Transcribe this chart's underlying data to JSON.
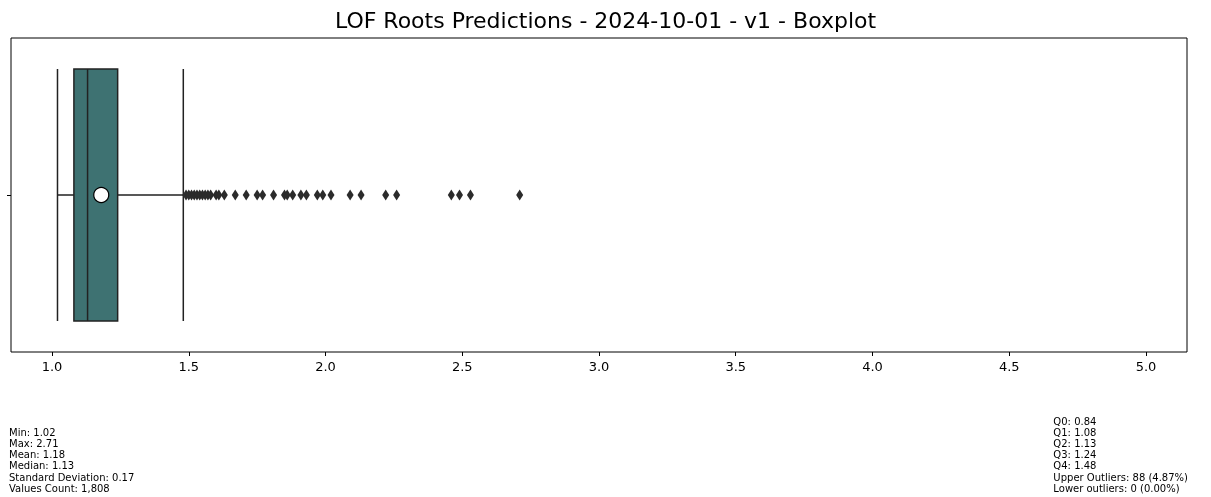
{
  "chart_data": {
    "type": "box",
    "title": "LOF Roots Predictions - 2024-10-01 - v1 - Boxplot",
    "orientation": "horizontal",
    "categories": [
      null
    ],
    "color": "#3e7272",
    "boxes": [
      {
        "low": 1.02,
        "q1": 1.08,
        "median": 1.13,
        "q3": 1.24,
        "high": 1.48,
        "mean": 1.18,
        "outliers": [
          1.49,
          1.5,
          1.51,
          1.52,
          1.53,
          1.54,
          1.55,
          1.56,
          1.57,
          1.58,
          1.6,
          1.61,
          1.63,
          1.67,
          1.71,
          1.75,
          1.77,
          1.81,
          1.85,
          1.86,
          1.88,
          1.91,
          1.93,
          1.97,
          1.99,
          2.02,
          2.09,
          2.13,
          2.22,
          2.26,
          2.46,
          2.49,
          2.53,
          2.71
        ]
      }
    ],
    "xlim": [
      0.85,
      5.15
    ],
    "xticks": [
      {
        "value": 1,
        "label": "1.0"
      },
      1.5,
      {
        "value": 2,
        "label": "2.0"
      },
      2.5,
      {
        "value": 3,
        "label": "3.0"
      },
      3.5,
      {
        "value": 4,
        "label": "4.0"
      },
      4.5,
      {
        "value": 5,
        "label": "5.0"
      }
    ],
    "grid": false,
    "marker": "diamond",
    "annotations": [
      "Min: 1.02\nMax: 2.71\nMean: 1.18\nMedian: 1.13\nStandard Deviation: 0.17\nValues Count: 1,808",
      "Q0: 0.84\nQ1: 1.08\nQ2: 1.13\nQ3: 1.24\nQ4: 1.48\nUpper Outliers: 88 (4.87%)\nLower outliers: 0 (0.00%)"
    ]
  }
}
